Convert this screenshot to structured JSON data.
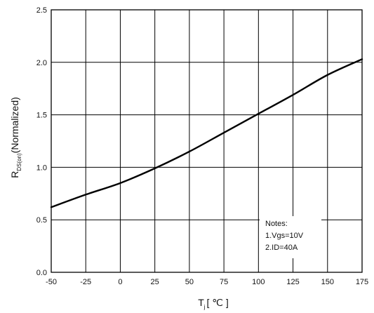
{
  "chart_data": {
    "type": "line",
    "x_label": {
      "main": "T",
      "sub": "j",
      "unit": "[ ℃ ]"
    },
    "y_label": {
      "main": "R",
      "sub": "DS(on)",
      "rest": "(Normalized)"
    },
    "xlim": [
      -50,
      175
    ],
    "ylim": [
      0,
      2.5
    ],
    "x_ticks": [
      "-50",
      "-25",
      "0",
      "25",
      "50",
      "75",
      "100",
      "125",
      "150",
      "175"
    ],
    "y_ticks": [
      "0.0",
      "0.5",
      "1.0",
      "1.5",
      "2.0",
      "2.5"
    ],
    "grid": true,
    "series": [
      {
        "x": [
          -50,
          -25,
          0,
          25,
          50,
          75,
          100,
          125,
          150,
          175
        ],
        "y": [
          0.62,
          0.74,
          0.85,
          0.99,
          1.15,
          1.33,
          1.51,
          1.69,
          1.88,
          2.03
        ]
      }
    ],
    "notes": [
      "Notes:",
      "1.Vgs=10V",
      "2.ID=40A"
    ]
  }
}
